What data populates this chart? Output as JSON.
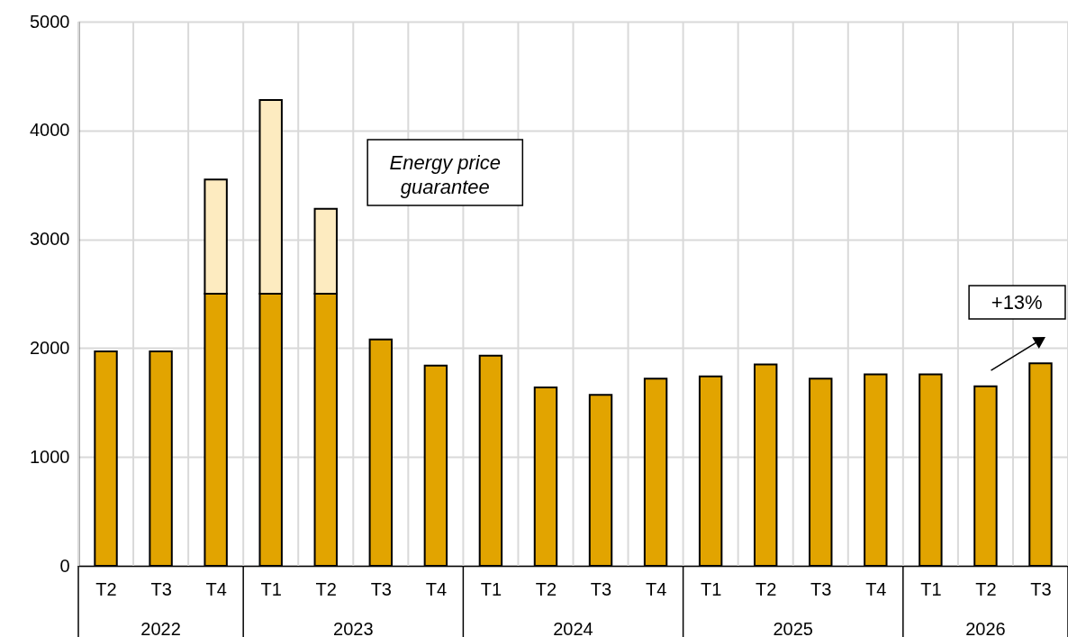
{
  "chart_data": {
    "type": "bar",
    "stacked": true,
    "categories": [
      "T2",
      "T3",
      "T4",
      "T1",
      "T2",
      "T3",
      "T4",
      "T1",
      "T2",
      "T3",
      "T4",
      "T1",
      "T2",
      "T3",
      "T4",
      "T1",
      "T2",
      "T3"
    ],
    "series": [
      {
        "color": "#e2a400",
        "values": [
          1970,
          1970,
          2500,
          2500,
          2500,
          2080,
          1840,
          1930,
          1640,
          1570,
          1720,
          1740,
          1850,
          1720,
          1760,
          1760,
          1650,
          1860
        ]
      },
      {
        "color": "#fdebc0",
        "values": [
          null,
          null,
          1050,
          1780,
          780,
          null,
          null,
          null,
          null,
          null,
          null,
          null,
          null,
          null,
          null,
          null,
          null,
          null
        ]
      }
    ],
    "ylim": [
      0,
      5000
    ],
    "yticks": [
      0,
      1000,
      2000,
      3000,
      4000,
      5000
    ],
    "grid": true,
    "annotations": [
      "Energy price guarantee",
      "+13%",
      "2022",
      "2023",
      "2024",
      "2025",
      "2026"
    ]
  }
}
